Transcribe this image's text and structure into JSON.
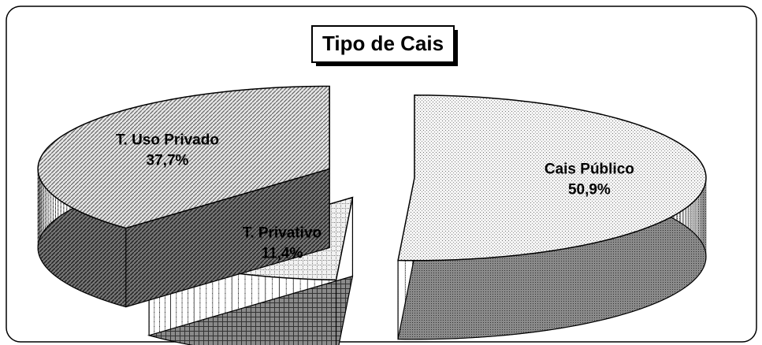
{
  "chart_data": {
    "type": "pie3d",
    "title": "Tipo de Cais",
    "categories": [
      "Cais Público",
      "T. Privativo",
      "T. Uso Privado"
    ],
    "values": [
      50.9,
      11.4,
      37.7
    ],
    "value_labels": [
      "50,9%",
      "11,4%",
      "37,7%"
    ]
  }
}
